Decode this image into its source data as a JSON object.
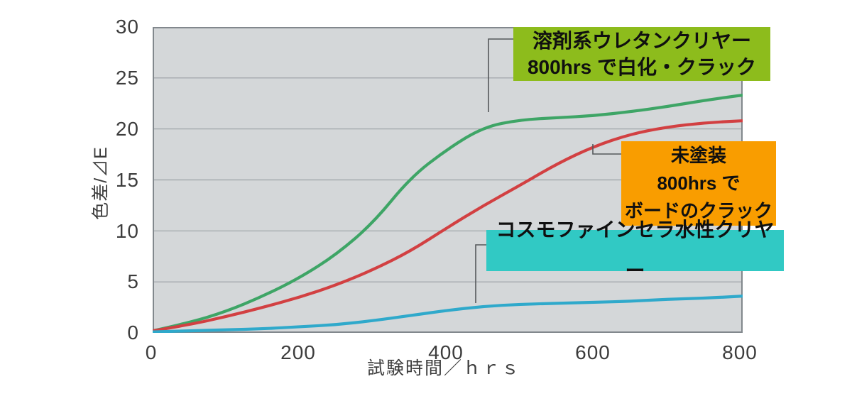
{
  "chart_data": {
    "type": "line",
    "title": "",
    "xlabel": "試験時間／ｈｒｓ",
    "ylabel": "色差/⊿E",
    "xlim": [
      0,
      800
    ],
    "ylim": [
      0,
      30
    ],
    "x_ticks": [
      0,
      200,
      400,
      600,
      800
    ],
    "y_ticks": [
      0,
      5,
      10,
      15,
      20,
      25,
      30
    ],
    "grid": "horizontal",
    "plot_bg": "#D4D7D9",
    "grid_color": "#9BA1A6",
    "border_color": "#82888D",
    "leader_color": "#55585B",
    "x": [
      0,
      50,
      100,
      150,
      200,
      250,
      300,
      350,
      400,
      450,
      500,
      550,
      600,
      650,
      700,
      750,
      800
    ],
    "series": [
      {
        "name": "溶剤系ウレタンクリヤー",
        "color": "#3EA566",
        "values": [
          0.2,
          1.0,
          2.1,
          3.6,
          5.4,
          7.7,
          10.8,
          15.2,
          18.0,
          20.2,
          20.9,
          21.1,
          21.3,
          21.7,
          22.2,
          22.8,
          23.3
        ]
      },
      {
        "name": "未塗装",
        "color": "#D24042",
        "values": [
          0.2,
          0.8,
          1.6,
          2.5,
          3.5,
          4.7,
          6.2,
          8.0,
          10.3,
          12.5,
          14.5,
          16.6,
          18.3,
          19.5,
          20.2,
          20.6,
          20.8
        ]
      },
      {
        "name": "コスモファインセラ水性クリヤー",
        "color": "#2FA9CB",
        "values": [
          0.1,
          0.2,
          0.3,
          0.4,
          0.6,
          0.8,
          1.2,
          1.7,
          2.2,
          2.6,
          2.8,
          2.9,
          3.0,
          3.1,
          3.3,
          3.4,
          3.6
        ]
      }
    ],
    "annotations": [
      {
        "lines": [
          "溶剤系ウレタンクリヤー",
          "800hrs で白化・クラック"
        ],
        "bg": "#8DBC1C"
      },
      {
        "lines": [
          "未塗装",
          "800hrs で",
          "ボードのクラック"
        ],
        "bg": "#F99D00"
      },
      {
        "lines": [
          "コスモファインセラ水性クリヤー"
        ],
        "bg": "#31C9C4"
      }
    ]
  }
}
